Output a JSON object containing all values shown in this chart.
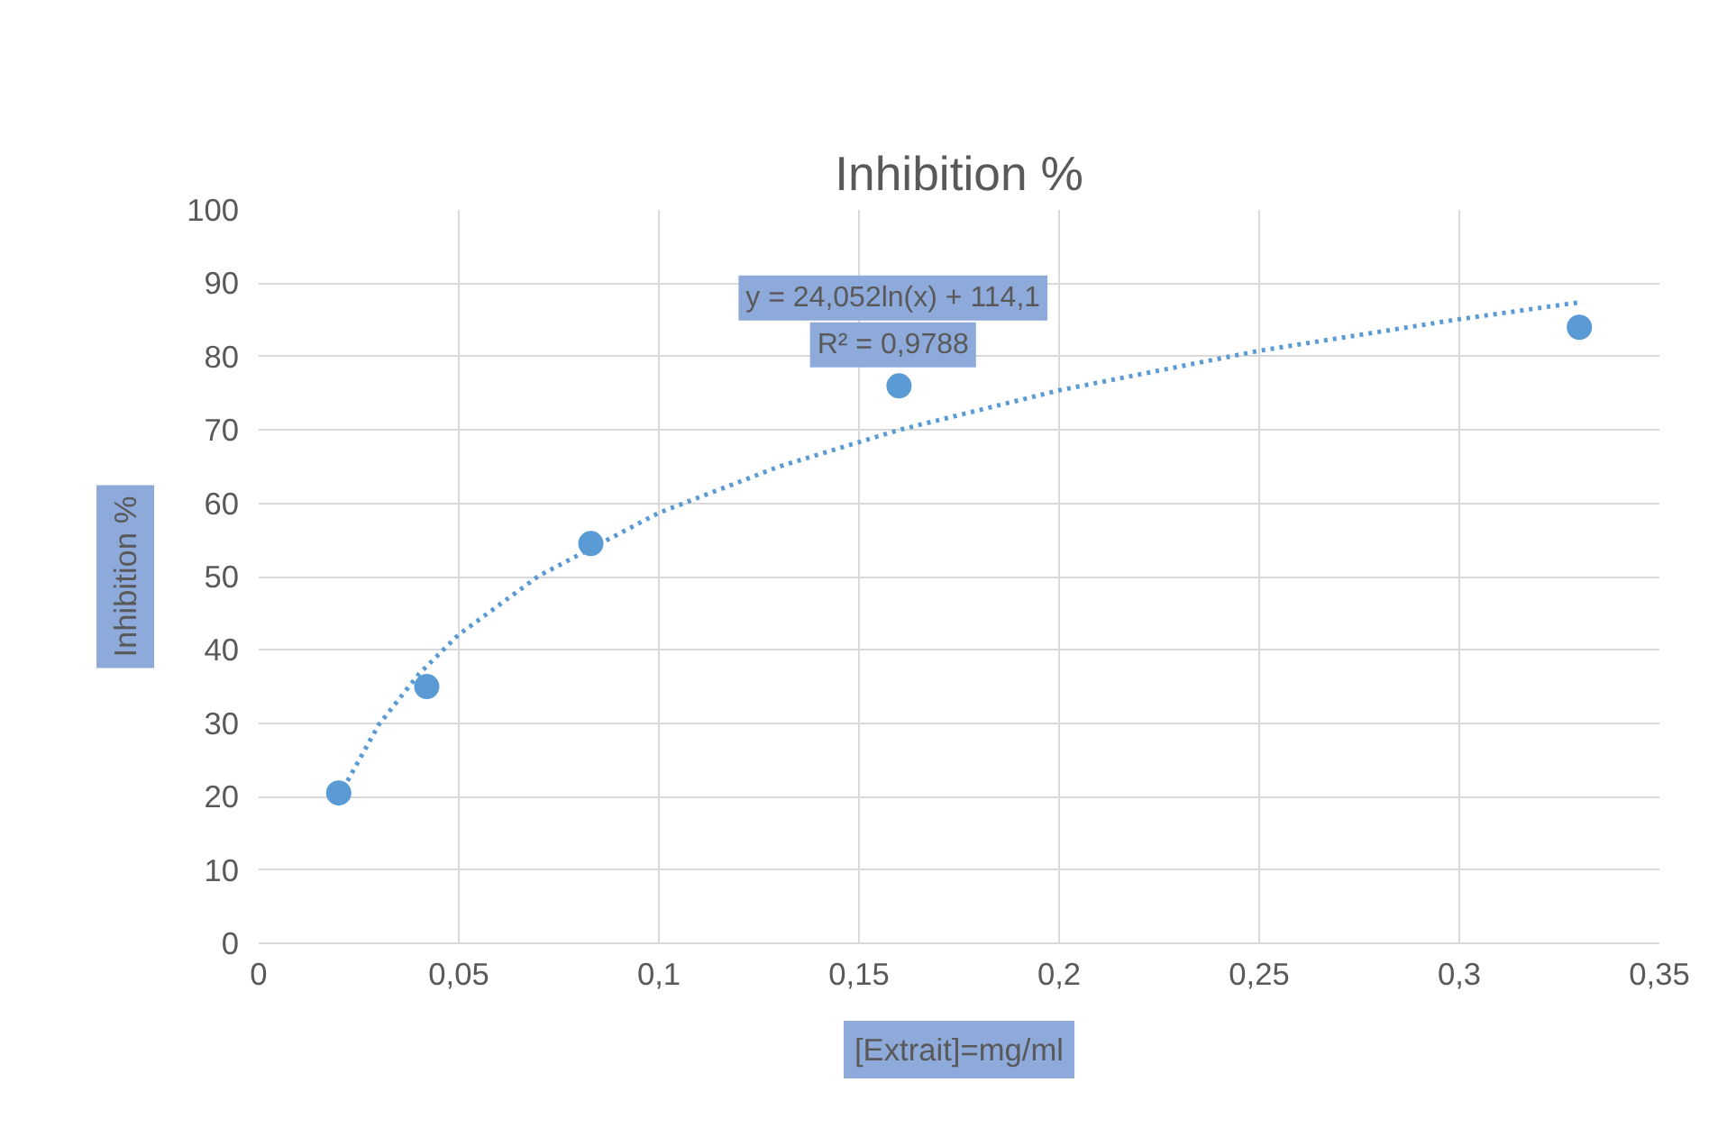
{
  "chart_data": {
    "type": "scatter",
    "title": "Inhibition %",
    "xlabel": "[Extrait]=mg/ml",
    "ylabel": "Inhibition %",
    "annotations": [
      "y = 24,052ln(x) + 114,1",
      "R² = 0,9788"
    ],
    "xlim": [
      0,
      0.35
    ],
    "ylim": [
      0,
      100
    ],
    "xticks": [
      0,
      {
        "value": 0.05,
        "label": "0,05"
      },
      {
        "value": 0.1,
        "label": "0,1"
      },
      {
        "value": 0.15,
        "label": "0,15"
      },
      {
        "value": 0.2,
        "label": "0,2"
      },
      {
        "value": 0.25,
        "label": "0,25"
      },
      {
        "value": 0.3,
        "label": "0,3"
      },
      {
        "value": 0.35,
        "label": "0,35"
      }
    ],
    "yticks": [
      0,
      10,
      20,
      30,
      40,
      50,
      60,
      70,
      80,
      90,
      100
    ],
    "grid": true,
    "marker": "circle",
    "x": [
      0.02,
      0.042,
      0.083,
      0.16,
      0.33
    ],
    "series": [
      {
        "color": "#5b9bd5",
        "values": [
          20.5,
          35,
          54.5,
          76,
          84
        ]
      },
      {
        "type": "line",
        "line_style": "dotted",
        "marker": "none",
        "color": "#5b9bd5",
        "x": [
          0.02,
          0.03,
          0.04,
          0.05,
          0.07,
          0.1,
          0.13,
          0.16,
          0.2,
          0.25,
          0.3,
          0.33
        ],
        "values": [
          20.0,
          29.8,
          36.7,
          42.1,
          50.1,
          58.7,
          65.0,
          70.0,
          75.4,
          80.8,
          85.1,
          87.4
        ]
      }
    ]
  }
}
